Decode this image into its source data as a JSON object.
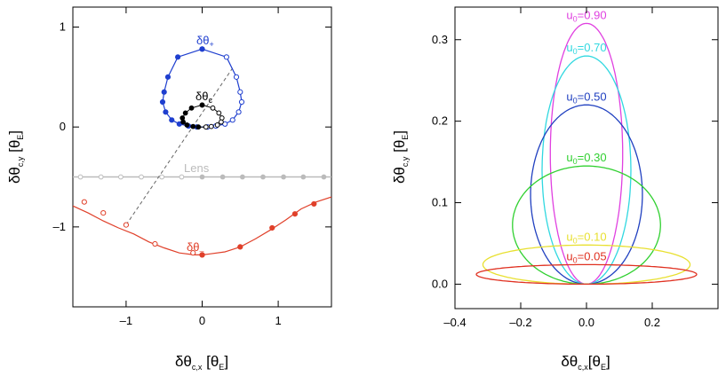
{
  "chart_data": [
    {
      "type": "scatter",
      "xlabel": {
        "base": "δθ",
        "sub": "c,x",
        "unit": " [θ",
        "unit_sub": "E",
        "close": "]"
      },
      "ylabel": {
        "base": "δθ",
        "sub": "c,y",
        "unit": " [θ",
        "unit_sub": "E",
        "close": "]"
      },
      "xlim": [
        -1.7,
        1.7
      ],
      "ylim": [
        -1.8,
        1.2
      ],
      "xticks": [
        -1,
        0,
        1
      ],
      "yticks": [
        -1,
        0,
        1
      ],
      "grid": false,
      "annotations": {
        "plus": {
          "base": "δθ",
          "sub": "+"
        },
        "minus": {
          "base": "δθ",
          "sub": "–"
        },
        "centroid": {
          "base": "δθ",
          "sub": "c"
        },
        "lens": "Lens"
      },
      "colors": {
        "plus": "#1f3fcf",
        "minus": "#e0402a",
        "centroid": "#000000",
        "lens": "#bbbbbb",
        "connector": "#666666"
      },
      "series": [
        {
          "key": "lens",
          "points": [
            [
              -1.6,
              -0.5
            ],
            [
              -1.33,
              -0.5
            ],
            [
              -1.07,
              -0.5
            ],
            [
              -0.8,
              -0.5
            ],
            [
              -0.53,
              -0.5
            ],
            [
              -0.27,
              -0.5
            ],
            [
              0.0,
              -0.5
            ],
            [
              0.27,
              -0.5
            ],
            [
              0.53,
              -0.5
            ],
            [
              0.8,
              -0.5
            ],
            [
              1.07,
              -0.5
            ],
            [
              1.33,
              -0.5
            ],
            [
              1.6,
              -0.5
            ]
          ]
        },
        {
          "key": "minus_curve",
          "points": [
            [
              -1.7,
              -0.79
            ],
            [
              -1.5,
              -0.86
            ],
            [
              -1.3,
              -0.94
            ],
            [
              -1.1,
              -1.01
            ],
            [
              -0.9,
              -1.07
            ],
            [
              -0.7,
              -1.15
            ],
            [
              -0.5,
              -1.21
            ],
            [
              -0.3,
              -1.26
            ],
            [
              -0.1,
              -1.28
            ],
            [
              0.0,
              -1.28
            ],
            [
              0.1,
              -1.27
            ],
            [
              0.3,
              -1.25
            ],
            [
              0.5,
              -1.2
            ],
            [
              0.7,
              -1.12
            ],
            [
              0.9,
              -1.03
            ],
            [
              1.1,
              -0.93
            ],
            [
              1.3,
              -0.82
            ],
            [
              1.5,
              -0.75
            ],
            [
              1.7,
              -0.7
            ]
          ]
        },
        {
          "key": "minus_open",
          "points": [
            [
              -1.55,
              -0.75
            ],
            [
              -1.3,
              -0.86
            ],
            [
              -1.0,
              -0.98
            ],
            [
              -0.62,
              -1.17
            ],
            [
              -0.12,
              -1.26
            ],
            [
              0.0,
              -1.28
            ]
          ]
        },
        {
          "key": "minus_filled",
          "points": [
            [
              0.0,
              -1.28
            ],
            [
              0.5,
              -1.2
            ],
            [
              0.92,
              -1.01
            ],
            [
              1.22,
              -0.87
            ],
            [
              1.47,
              -0.77
            ]
          ]
        },
        {
          "key": "plus_open",
          "points": [
            [
              0.0,
              0.78
            ],
            [
              0.32,
              0.7
            ],
            [
              0.45,
              0.5
            ],
            [
              0.5,
              0.35
            ],
            [
              0.52,
              0.25
            ],
            [
              0.48,
              0.15
            ],
            [
              0.4,
              0.07
            ],
            [
              0.3,
              0.03
            ],
            [
              0.18,
              0.01
            ],
            [
              0.07,
              0.0
            ]
          ]
        },
        {
          "key": "plus_filled",
          "points": [
            [
              0.0,
              0.78
            ],
            [
              -0.32,
              0.7
            ],
            [
              -0.45,
              0.5
            ],
            [
              -0.5,
              0.35
            ],
            [
              -0.52,
              0.25
            ],
            [
              -0.48,
              0.15
            ],
            [
              -0.4,
              0.07
            ],
            [
              -0.3,
              0.03
            ],
            [
              -0.18,
              0.01
            ],
            [
              -0.07,
              0.0
            ]
          ]
        },
        {
          "key": "centroid_open",
          "points": [
            [
              0.0,
              0.22
            ],
            [
              0.14,
              0.19
            ],
            [
              0.22,
              0.14
            ],
            [
              0.26,
              0.09
            ],
            [
              0.25,
              0.05
            ],
            [
              0.2,
              0.02
            ],
            [
              0.12,
              0.005
            ],
            [
              0.05,
              0.0
            ]
          ]
        },
        {
          "key": "centroid_filled",
          "points": [
            [
              0.0,
              0.22
            ],
            [
              -0.14,
              0.19
            ],
            [
              -0.22,
              0.14
            ],
            [
              -0.26,
              0.09
            ],
            [
              -0.25,
              0.05
            ],
            [
              -0.2,
              0.02
            ],
            [
              -0.12,
              0.005
            ],
            [
              -0.05,
              0.0
            ]
          ]
        },
        {
          "key": "connector",
          "points": [
            [
              -1.0,
              -0.98
            ],
            [
              0.4,
              0.59
            ]
          ]
        }
      ]
    },
    {
      "type": "line",
      "xlabel": {
        "base": "δθ",
        "sub": "c,x",
        "unit": "[θ",
        "unit_sub": "E",
        "close": "]"
      },
      "ylabel": {
        "base": "δθ",
        "sub": "c,y",
        "unit": " [θ",
        "unit_sub": "E",
        "close": "]"
      },
      "xlim": [
        -0.4,
        0.4
      ],
      "ylim": [
        -0.03,
        0.34
      ],
      "xticks": [
        -0.4,
        -0.2,
        0.0,
        0.2
      ],
      "xtick_labels": [
        "–0.4",
        "–0.2",
        "0.0",
        "0.2"
      ],
      "yticks": [
        0.0,
        0.1,
        0.2,
        0.3
      ],
      "ytick_labels": [
        "0.0",
        "0.1",
        "0.2",
        "0.3"
      ],
      "grid": false,
      "series": [
        {
          "u0": 0.9,
          "label": {
            "base": "u",
            "sub": "0",
            "rest": "=0.90"
          },
          "color": "#e040e0",
          "peak": 0.32,
          "halfwidth": 0.11
        },
        {
          "u0": 0.7,
          "label": {
            "base": "u",
            "sub": "0",
            "rest": "=0.70"
          },
          "color": "#30d8e0",
          "peak": 0.28,
          "halfwidth": 0.135
        },
        {
          "u0": 0.5,
          "label": {
            "base": "u",
            "sub": "0",
            "rest": "=0.50"
          },
          "color": "#2040c0",
          "peak": 0.22,
          "halfwidth": 0.17
        },
        {
          "u0": 0.3,
          "label": {
            "base": "u",
            "sub": "0",
            "rest": "=0.30"
          },
          "color": "#30d030",
          "peak": 0.145,
          "halfwidth": 0.225
        },
        {
          "u0": 0.1,
          "label": {
            "base": "u",
            "sub": "0",
            "rest": "=0.10"
          },
          "color": "#e8e030",
          "peak": 0.048,
          "halfwidth": 0.315
        },
        {
          "u0": 0.05,
          "label": {
            "base": "u",
            "sub": "0",
            "rest": "=0.05"
          },
          "color": "#e03020",
          "peak": 0.024,
          "halfwidth": 0.335
        }
      ]
    }
  ]
}
